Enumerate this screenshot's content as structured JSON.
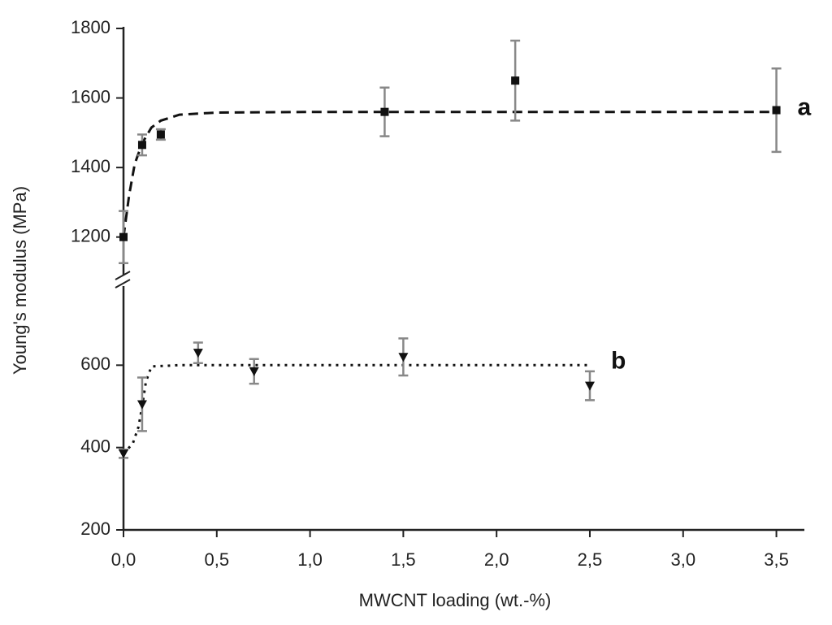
{
  "chart_data": {
    "type": "scatter",
    "x_label": "MWCNT loading (wt.-%)",
    "y_label": "Young's modulus (MPa)",
    "xlim": [
      0,
      3.65
    ],
    "xticks": [
      {
        "value": 0,
        "label": "0,0"
      },
      {
        "value": 0.5,
        "label": "0,5"
      },
      {
        "value": 1,
        "label": "1,0"
      },
      {
        "value": 1.5,
        "label": "1,5"
      },
      {
        "value": 2,
        "label": "2,0"
      },
      {
        "value": 2.5,
        "label": "2,5"
      },
      {
        "value": 3,
        "label": "3,0"
      },
      {
        "value": 3.5,
        "label": "3,5"
      }
    ],
    "y_segments": [
      {
        "ylim": [
          1080,
          1800
        ],
        "yticks": [
          1200,
          1400,
          1600,
          1800
        ]
      },
      {
        "ylim": [
          200,
          800
        ],
        "yticks": [
          200,
          400,
          600
        ]
      }
    ],
    "series": [
      {
        "name": "a",
        "color": "#111111",
        "marker": "square",
        "x": [
          0,
          0.1,
          0.2,
          1.4,
          2.1,
          3.5
        ],
        "values": [
          1200,
          1465,
          1495,
          1560,
          1650,
          1565
        ],
        "errors": [
          75,
          30,
          15,
          70,
          115,
          120
        ],
        "fit_style": "dashed",
        "fit_x": [
          0,
          0.03,
          0.06,
          0.1,
          0.15,
          0.2,
          0.3,
          0.5,
          1,
          2,
          3.5
        ],
        "fit_values": [
          1200,
          1320,
          1410,
          1470,
          1515,
          1535,
          1552,
          1558,
          1560,
          1560,
          1560
        ]
      },
      {
        "name": "b",
        "color": "#111111",
        "marker": "triangle",
        "x": [
          0,
          0.1,
          0.4,
          0.7,
          1.5,
          2.5
        ],
        "values": [
          385,
          505,
          630,
          585,
          620,
          550
        ],
        "errors": [
          10,
          65,
          25,
          30,
          45,
          35
        ],
        "fit_style": "dotted",
        "fit_x": [
          0,
          0.05,
          0.08,
          0.1,
          0.12,
          0.15,
          0.3,
          1,
          2.5
        ],
        "fit_values": [
          385,
          410,
          450,
          500,
          560,
          597,
          600,
          600,
          600
        ]
      }
    ],
    "error_color": "#888888"
  }
}
